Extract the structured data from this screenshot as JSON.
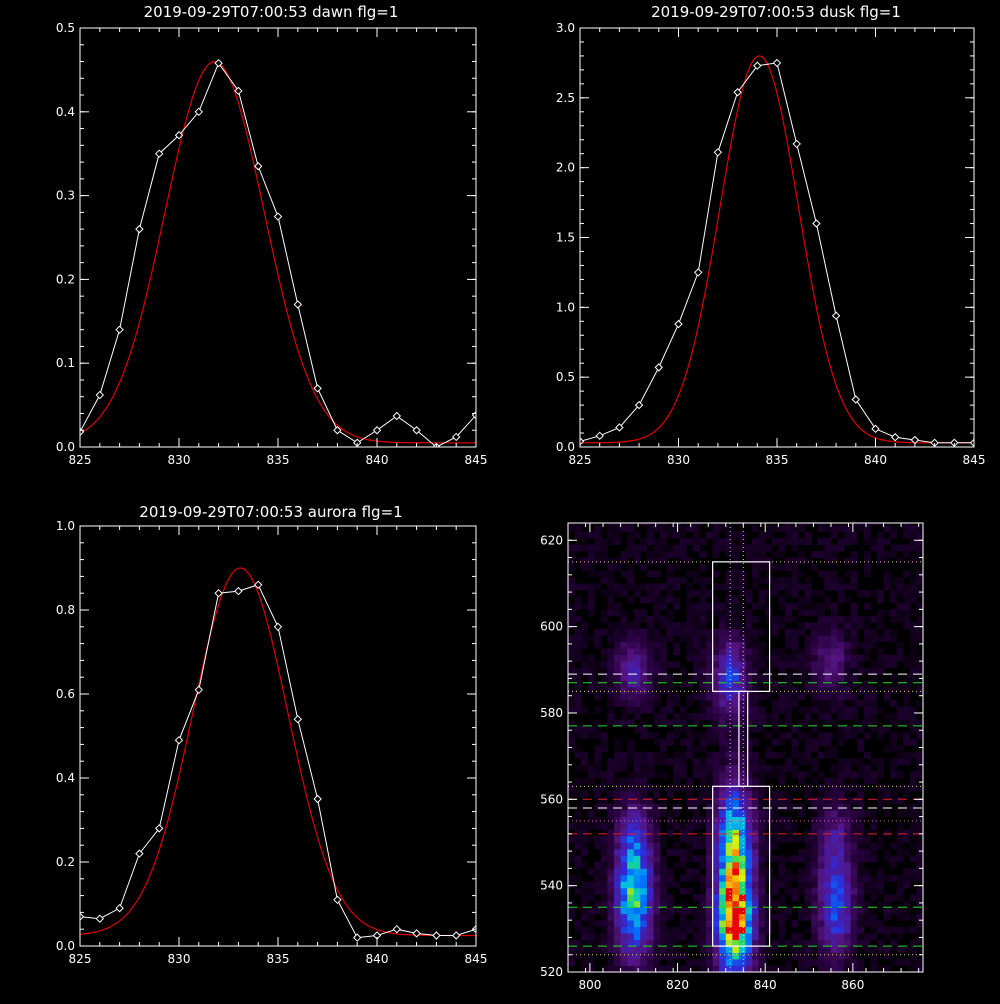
{
  "chart_data": [
    {
      "type": "line",
      "title": "2019-09-29T07:00:53 dawn flg=1",
      "xlim": [
        825,
        845
      ],
      "ylim": [
        0,
        0.5
      ],
      "xticks": [
        "825",
        "830",
        "835",
        "840",
        "845"
      ],
      "yticks": [
        "0.0",
        "0.1",
        "0.2",
        "0.3",
        "0.4",
        "0.5"
      ],
      "series": [
        {
          "color": "#ffffff",
          "marker": "diamond",
          "x": [
            825,
            826,
            827,
            828,
            829,
            830,
            831,
            832,
            833,
            834,
            835,
            836,
            837,
            838,
            839,
            840,
            841,
            842,
            843,
            844,
            845
          ],
          "y": [
            0.018,
            0.062,
            0.14,
            0.26,
            0.35,
            0.372,
            0.4,
            0.458,
            0.425,
            0.335,
            0.275,
            0.17,
            0.07,
            0.02,
            0.005,
            0.02,
            0.037,
            0.02,
            0.0,
            0.012,
            0.038
          ]
        },
        {
          "color": "#dd0000",
          "fit": "gaussian",
          "amplitude": 0.455,
          "center": 831.8,
          "sigma": 2.5,
          "offset": 0.005
        }
      ]
    },
    {
      "type": "line",
      "title": "2019-09-29T07:00:53 dusk flg=1",
      "xlim": [
        825,
        845
      ],
      "ylim": [
        0,
        3.0
      ],
      "xticks": [
        "825",
        "830",
        "835",
        "840",
        "845"
      ],
      "yticks": [
        "0.0",
        "0.5",
        "1.0",
        "1.5",
        "2.0",
        "2.5",
        "3.0"
      ],
      "series": [
        {
          "color": "#ffffff",
          "marker": "diamond",
          "x": [
            825,
            826,
            827,
            828,
            829,
            830,
            831,
            832,
            833,
            834,
            835,
            836,
            837,
            838,
            839,
            840,
            841,
            842,
            843,
            844,
            845
          ],
          "y": [
            0.04,
            0.08,
            0.14,
            0.3,
            0.57,
            0.88,
            1.25,
            2.11,
            2.54,
            2.73,
            2.75,
            2.17,
            1.6,
            0.94,
            0.34,
            0.13,
            0.07,
            0.05,
            0.03,
            0.03,
            0.03
          ]
        },
        {
          "color": "#dd0000",
          "fit": "gaussian",
          "amplitude": 2.77,
          "center": 834.1,
          "sigma": 2.0,
          "offset": 0.03
        }
      ]
    },
    {
      "type": "line",
      "title": "2019-09-29T07:00:53 aurora flg=1",
      "xlim": [
        825,
        845
      ],
      "ylim": [
        0,
        1.0
      ],
      "xticks": [
        "825",
        "830",
        "835",
        "840",
        "845"
      ],
      "yticks": [
        "0.0",
        "0.2",
        "0.4",
        "0.6",
        "0.8",
        "1.0"
      ],
      "series": [
        {
          "color": "#ffffff",
          "marker": "diamond",
          "x": [
            825,
            826,
            827,
            828,
            829,
            830,
            831,
            832,
            833,
            834,
            835,
            836,
            837,
            838,
            839,
            840,
            841,
            842,
            843,
            844,
            845
          ],
          "y": [
            0.07,
            0.065,
            0.09,
            0.22,
            0.28,
            0.49,
            0.61,
            0.84,
            0.845,
            0.86,
            0.76,
            0.54,
            0.35,
            0.11,
            0.02,
            0.025,
            0.04,
            0.03,
            0.025,
            0.025,
            0.04
          ]
        },
        {
          "color": "#dd0000",
          "fit": "gaussian",
          "amplitude": 0.875,
          "center": 833.1,
          "sigma": 2.4,
          "offset": 0.025
        }
      ]
    },
    {
      "type": "heatmap",
      "title": "",
      "xlim": [
        795,
        876
      ],
      "ylim": [
        520,
        624
      ],
      "xticks": [
        "800",
        "820",
        "840",
        "860"
      ],
      "yticks": [
        "520",
        "540",
        "560",
        "580",
        "600",
        "620"
      ],
      "blobs": [
        {
          "x": 810,
          "y": 536,
          "sx": 2.6,
          "sy": 8,
          "amp": 0.55
        },
        {
          "x": 810,
          "y": 548,
          "sx": 2.6,
          "sy": 7,
          "amp": 0.28
        },
        {
          "x": 810,
          "y": 590,
          "sx": 2.6,
          "sy": 4.5,
          "amp": 0.22
        },
        {
          "x": 833,
          "y": 532,
          "sx": 2.6,
          "sy": 8,
          "amp": 1.0
        },
        {
          "x": 833,
          "y": 550,
          "sx": 2.6,
          "sy": 9,
          "amp": 0.62
        },
        {
          "x": 832,
          "y": 588,
          "sx": 2.6,
          "sy": 6,
          "amp": 0.3
        },
        {
          "x": 856,
          "y": 535,
          "sx": 2.6,
          "sy": 7,
          "amp": 0.35
        },
        {
          "x": 856,
          "y": 550,
          "sx": 2.6,
          "sy": 6,
          "amp": 0.18
        },
        {
          "x": 855,
          "y": 592,
          "sx": 2.6,
          "sy": 5,
          "amp": 0.15
        }
      ],
      "boxes": [
        {
          "x0": 828,
          "x1": 841,
          "y0": 585,
          "y1": 615
        },
        {
          "x0": 834,
          "x1": 836,
          "y0": 563,
          "y1": 585
        },
        {
          "x0": 828,
          "x1": 841,
          "y0": 526,
          "y1": 563
        }
      ],
      "vlines": [
        {
          "x": 832,
          "color": "#cccccc",
          "style": "dotted"
        },
        {
          "x": 835,
          "color": "#cccccc",
          "style": "dotted"
        }
      ],
      "hlines": [
        {
          "y": 615,
          "color": "#dddd66",
          "style": "dotted"
        },
        {
          "y": 589,
          "color": "#ffffff",
          "style": "dashed"
        },
        {
          "y": 587,
          "color": "#22dd22",
          "style": "dashed"
        },
        {
          "y": 585,
          "color": "#dddd66",
          "style": "dotted"
        },
        {
          "y": 577,
          "color": "#22dd22",
          "style": "dashed"
        },
        {
          "y": 563,
          "color": "#dddd66",
          "style": "dotted"
        },
        {
          "y": 560,
          "color": "#dd2222",
          "style": "dashed"
        },
        {
          "y": 558,
          "color": "#ffffff",
          "style": "dashed"
        },
        {
          "y": 555,
          "color": "#dd66aa",
          "style": "dotted"
        },
        {
          "y": 552,
          "color": "#dd2222",
          "style": "dashed"
        },
        {
          "y": 535,
          "color": "#22dd22",
          "style": "dashed"
        },
        {
          "y": 526,
          "color": "#22dd22",
          "style": "dashed"
        },
        {
          "y": 524,
          "color": "#dddd66",
          "style": "dotted"
        }
      ]
    }
  ]
}
